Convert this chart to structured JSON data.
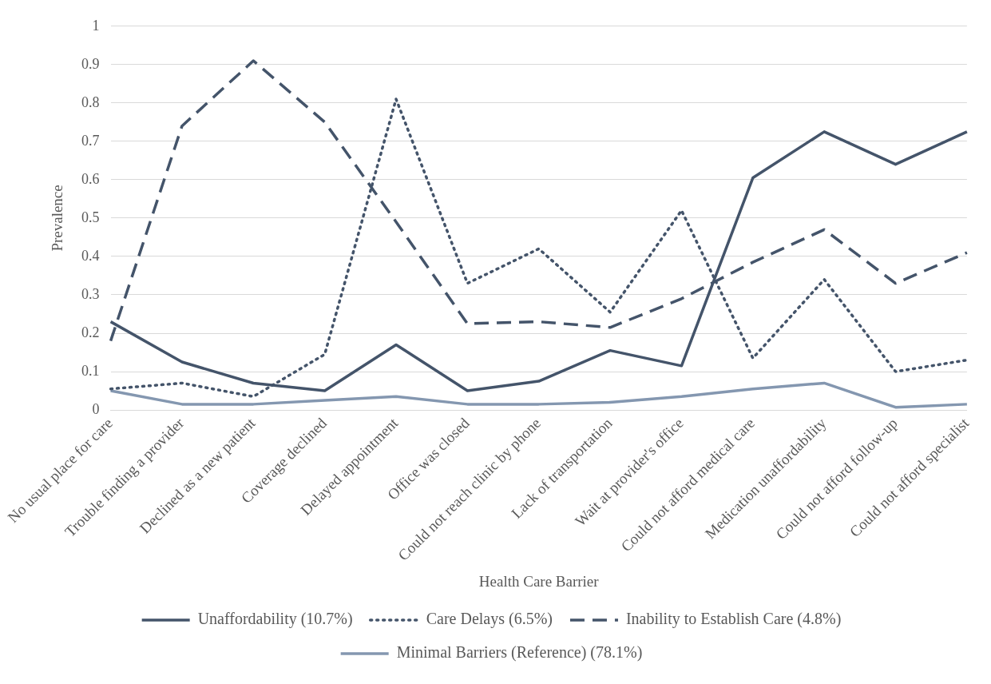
{
  "chart_data": {
    "type": "line",
    "xlabel": "Health Care Barrier",
    "ylabel": "Prevalence",
    "categories": [
      "No usual place for care",
      "Trouble finding a provider",
      "Declined as a new patient",
      "Coverage declined",
      "Delayed appointment",
      "Office was closed",
      "Could not reach clinic by phone",
      "Lack of transportation",
      "Wait at provider's office",
      "Could not afford medical care",
      "Medication unaffordability",
      "Could not afford follow-up",
      "Could not afford specialist"
    ],
    "series": [
      {
        "name": "Unaffordability (10.7%)",
        "color": "#44546a",
        "line_style": "solid",
        "values": [
          0.23,
          0.125,
          0.07,
          0.05,
          0.17,
          0.05,
          0.075,
          0.155,
          0.115,
          0.605,
          0.725,
          0.64,
          0.725
        ]
      },
      {
        "name": "Care Delays (6.5%)",
        "color": "#44546a",
        "line_style": "dotted",
        "values": [
          0.055,
          0.07,
          0.035,
          0.145,
          0.81,
          0.33,
          0.42,
          0.255,
          0.52,
          0.135,
          0.34,
          0.1,
          0.13
        ]
      },
      {
        "name": "Inability to Establish Care (4.8%)",
        "color": "#44546a",
        "line_style": "dashed",
        "values": [
          0.18,
          0.74,
          0.91,
          0.75,
          0.49,
          0.225,
          0.23,
          0.215,
          0.29,
          0.385,
          0.47,
          0.33,
          0.41
        ]
      },
      {
        "name": "Minimal Barriers (Reference) (78.1%)",
        "color": "#8497b0",
        "line_style": "solid",
        "values": [
          0.05,
          0.015,
          0.015,
          0.025,
          0.035,
          0.015,
          0.015,
          0.02,
          0.035,
          0.055,
          0.07,
          0.007,
          0.015
        ]
      }
    ],
    "ylim": [
      0,
      1
    ],
    "yticks": [
      0,
      0.1,
      0.2,
      0.3,
      0.4,
      0.5,
      0.6,
      0.7,
      0.8,
      0.9,
      1
    ],
    "grid": "y",
    "legend": "bottom",
    "marker": "none"
  }
}
